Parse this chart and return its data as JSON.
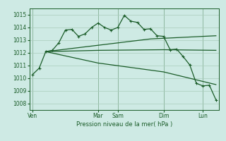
{
  "bg_color": "#ceeae4",
  "grid_color": "#aaccbb",
  "line_color": "#1a5c28",
  "xlabel": "Pression niveau de la mer( hPa )",
  "ylim": [
    1007.5,
    1015.5
  ],
  "yticks": [
    1008,
    1009,
    1010,
    1011,
    1012,
    1013,
    1014,
    1015
  ],
  "day_labels": [
    "Ven",
    "Mar",
    "Sam",
    "Dim",
    "Lun"
  ],
  "day_positions": [
    0,
    10,
    13,
    20,
    26
  ],
  "n_points": 29,
  "line1_x": [
    0,
    1,
    2,
    3,
    4,
    5,
    6,
    7,
    8,
    9,
    10,
    11,
    12,
    13,
    14,
    15,
    16,
    17,
    18,
    19,
    20,
    21,
    22,
    23,
    24,
    25,
    26,
    27,
    28
  ],
  "line1_y": [
    1010.3,
    1010.8,
    1012.1,
    1012.2,
    1012.8,
    1013.8,
    1013.85,
    1013.3,
    1013.5,
    1014.0,
    1014.35,
    1014.0,
    1013.8,
    1014.0,
    1014.95,
    1014.5,
    1014.4,
    1013.85,
    1013.9,
    1013.35,
    1013.3,
    1012.25,
    1012.3,
    1011.7,
    1011.05,
    1009.6,
    1009.4,
    1009.45,
    1008.3
  ],
  "line2_x": [
    2,
    10,
    20,
    28
  ],
  "line2_y": [
    1012.1,
    1012.2,
    1012.25,
    1012.2
  ],
  "line3_x": [
    2,
    10,
    18,
    28
  ],
  "line3_y": [
    1012.1,
    1012.6,
    1013.1,
    1013.35
  ],
  "line4_x": [
    2,
    10,
    20,
    28
  ],
  "line4_y": [
    1012.1,
    1011.2,
    1010.5,
    1009.5
  ]
}
